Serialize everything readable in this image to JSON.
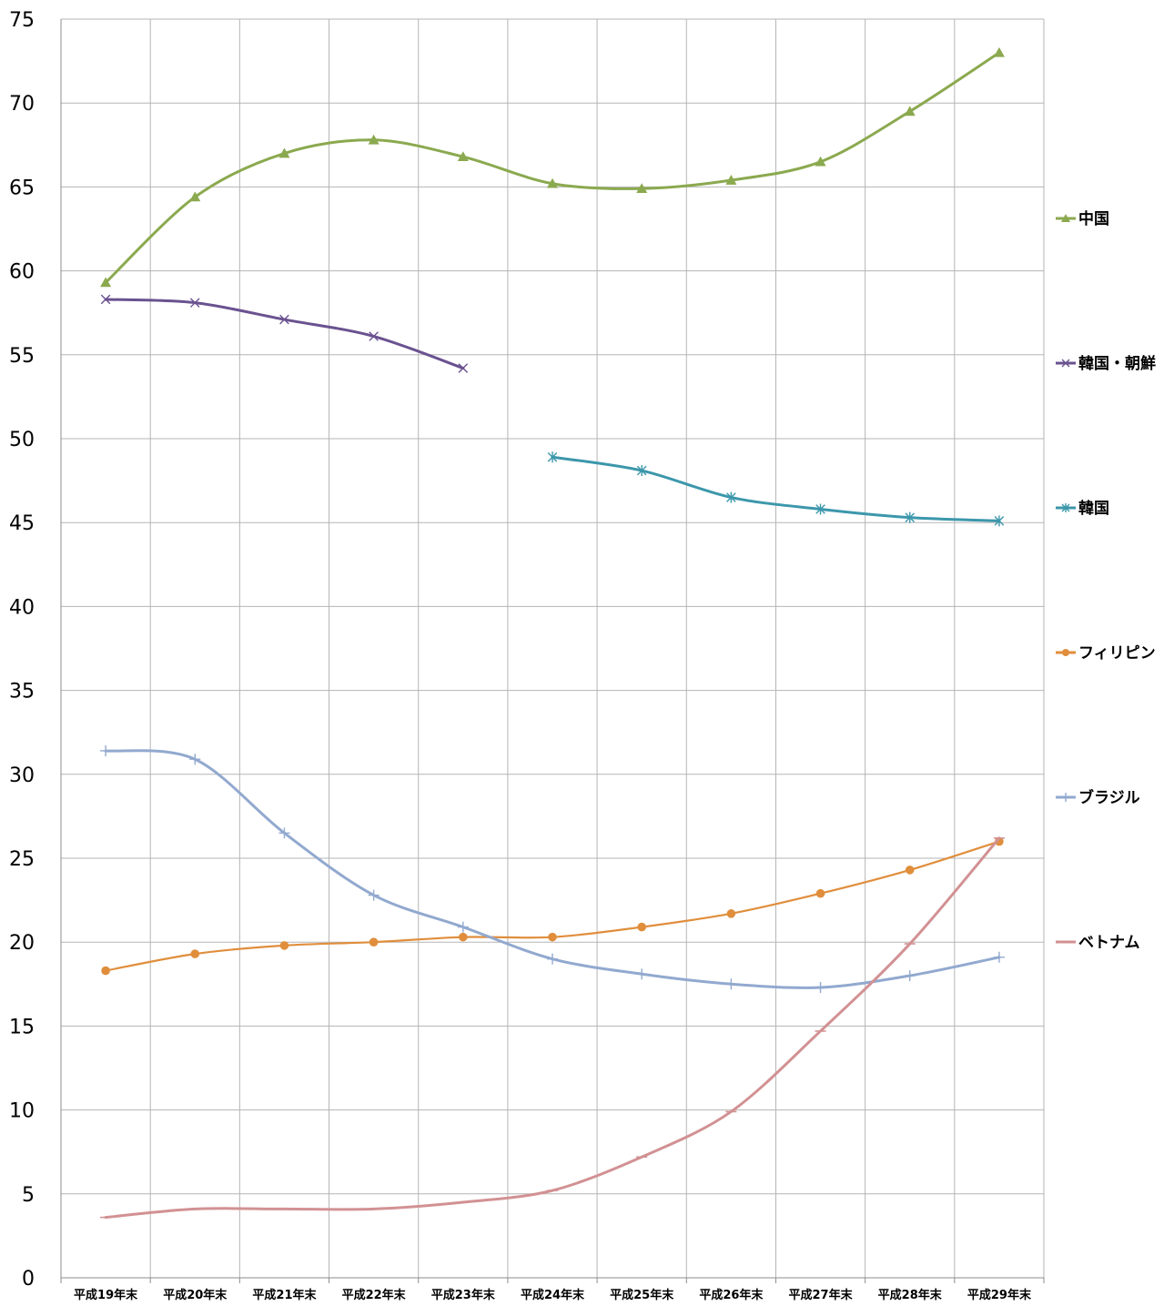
{
  "chart_data": {
    "type": "line",
    "title": "",
    "xlabel": "",
    "ylabel": "",
    "ylim": [
      0,
      75
    ],
    "yticks": [
      0,
      5,
      10,
      15,
      20,
      25,
      30,
      35,
      40,
      45,
      50,
      55,
      60,
      65,
      70,
      75
    ],
    "categories": [
      "平成19年末",
      "平成20年末",
      "平成21年末",
      "平成22年末",
      "平成23年末",
      "平成24年末",
      "平成25年末",
      "平成26年末",
      "平成27年末",
      "平成28年末",
      "平成29年末"
    ],
    "grid": true,
    "legend_position": "right",
    "series": [
      {
        "name": "中国",
        "color": "#8BA94F",
        "marker": "triangle",
        "values": [
          59.3,
          64.4,
          67.0,
          67.8,
          66.8,
          65.2,
          64.9,
          65.4,
          66.5,
          69.5,
          73.0
        ]
      },
      {
        "name": "韓国・朝鮮",
        "color": "#6A5290",
        "marker": "x",
        "values": [
          58.3,
          58.1,
          57.1,
          56.1,
          54.2,
          null,
          null,
          null,
          null,
          null,
          null
        ]
      },
      {
        "name": "韓国",
        "color": "#3C97AB",
        "marker": "asterisk",
        "values": [
          null,
          null,
          null,
          null,
          null,
          48.9,
          48.1,
          46.5,
          45.8,
          45.3,
          45.1
        ]
      },
      {
        "name": "フィリピン",
        "color": "#E08E3C",
        "marker": "circle",
        "values": [
          18.3,
          19.3,
          19.8,
          20.0,
          20.3,
          20.3,
          20.9,
          21.7,
          22.9,
          24.3,
          26.0
        ]
      },
      {
        "name": "ブラジル",
        "color": "#92A9CF",
        "marker": "plus",
        "values": [
          31.4,
          30.9,
          26.5,
          22.8,
          20.9,
          19.0,
          18.1,
          17.5,
          17.3,
          18.0,
          19.1
        ]
      },
      {
        "name": "ベトナム",
        "color": "#D29193",
        "marker": "dash",
        "values": [
          3.6,
          4.1,
          4.1,
          4.1,
          4.5,
          5.2,
          7.2,
          9.9,
          14.7,
          19.9,
          26.2
        ]
      }
    ]
  }
}
